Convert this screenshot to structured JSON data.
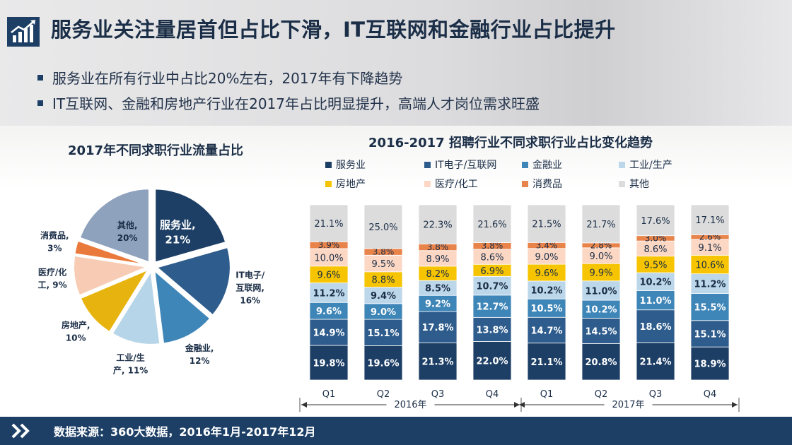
{
  "header": {
    "title": "服务业关注量居首但占比下滑，IT互联网和金融行业占比提升",
    "bullets": [
      "服务业在所有行业中占比20%左右，2017年有下降趋势",
      "IT互联网、金融和房地产行业在2017年占比明显提升，高端人才岗位需求旺盛"
    ]
  },
  "footer": {
    "source": "数据来源：360大数据，2016年1月-2017年12月"
  },
  "chart_data": [
    {
      "type": "pie",
      "title": "2017年不同求职行业流量占比",
      "slices": [
        {
          "name": "服务业",
          "value": 21,
          "label_lines": [
            "服务业,",
            "21%"
          ],
          "color": "#1d3f66"
        },
        {
          "name": "IT电子/互联网",
          "value": 16,
          "label_lines": [
            "IT电子/",
            "互联网,",
            "16%"
          ],
          "color": "#2e5c8c"
        },
        {
          "name": "金融业",
          "value": 12,
          "label_lines": [
            "金融业,",
            "12%"
          ],
          "color": "#3f86b8"
        },
        {
          "name": "工业/生产",
          "value": 11,
          "label_lines": [
            "工业/生",
            "产, 11%"
          ],
          "color": "#b7d5e8"
        },
        {
          "name": "房地产",
          "value": 10,
          "label_lines": [
            "房地产,",
            "10%"
          ],
          "color": "#e7b40f"
        },
        {
          "name": "医疗/化工",
          "value": 9,
          "label_lines": [
            "医疗/化",
            "工, 9%"
          ],
          "color": "#f8ccb4"
        },
        {
          "name": "消费品",
          "value": 3,
          "label_lines": [
            "消费品,",
            "3%"
          ],
          "color": "#ea7a3c"
        },
        {
          "name": "其他",
          "value": 20,
          "label_lines": [
            "其他,",
            "20%"
          ],
          "color": "#8fa2bd"
        }
      ]
    },
    {
      "type": "bar",
      "stacked": true,
      "title": "2016-2017 招聘行业不同求职行业占比变化趋势",
      "categories": [
        "Q1",
        "Q2",
        "Q3",
        "Q4",
        "Q1",
        "Q2",
        "Q3",
        "Q4"
      ],
      "groups": [
        {
          "label": "2016年",
          "span": [
            0,
            3
          ]
        },
        {
          "label": "2017年",
          "span": [
            4,
            7
          ]
        }
      ],
      "legend_position": "top",
      "series": [
        {
          "name": "服务业",
          "color": "#1d3f66",
          "values": [
            19.8,
            19.6,
            21.3,
            22.0,
            21.1,
            20.8,
            21.4,
            18.9
          ]
        },
        {
          "name": "IT电子/互联网",
          "color": "#2e5c8c",
          "values": [
            14.9,
            15.1,
            17.8,
            13.8,
            14.7,
            14.5,
            18.6,
            15.1
          ]
        },
        {
          "name": "金融业",
          "color": "#3f86b8",
          "values": [
            9.6,
            9.0,
            9.2,
            12.7,
            10.5,
            10.2,
            11.0,
            15.5
          ]
        },
        {
          "name": "工业/生产",
          "color": "#bcd6ea",
          "values": [
            11.2,
            9.4,
            8.5,
            10.7,
            10.2,
            11.0,
            10.2,
            11.2
          ]
        },
        {
          "name": "房地产",
          "color": "#f6c400",
          "values": [
            9.6,
            8.8,
            8.2,
            6.9,
            9.6,
            9.9,
            9.5,
            10.6
          ]
        },
        {
          "name": "医疗/化工",
          "color": "#fbd7c4",
          "values": [
            10.0,
            9.5,
            8.9,
            8.6,
            9.0,
            9.0,
            8.6,
            9.1
          ]
        },
        {
          "name": "消费品",
          "color": "#e8834a",
          "values": [
            3.9,
            3.8,
            3.8,
            3.8,
            3.4,
            2.8,
            3.0,
            2.6
          ]
        },
        {
          "name": "其他",
          "color": "#dcdcdc",
          "values": [
            21.1,
            25.0,
            22.3,
            21.6,
            21.5,
            21.7,
            17.6,
            17.1
          ]
        }
      ],
      "labels": [
        [
          "19.8%",
          "14.9%",
          "9.6%",
          "11.2%",
          "9.6%",
          "10.0%",
          "3.9%",
          "21.1%"
        ],
        [
          "19.6%",
          "15.1%",
          "9.0%",
          "9.4%",
          "8.8%",
          "9.5%",
          "3.8%",
          "25.0%"
        ],
        [
          "21.3%",
          "17.8%",
          "9.2%",
          "8.5%",
          "8.2%",
          "8.9%",
          "3.8%",
          "22.3%"
        ],
        [
          "22.0%",
          "13.8%",
          "12.7%",
          "10.7%",
          "6.9%",
          "8.6%",
          "3.8%",
          "21.6%"
        ],
        [
          "21.1%",
          "14.7%",
          "10.5%",
          "10.2%",
          "9.6%",
          "9.0%",
          "3.4%",
          "21.5%"
        ],
        [
          "20.8%",
          "14.5%",
          "10.2%",
          "11.0%",
          "9.9%",
          "9.0%",
          "2.8%",
          "21.7%"
        ],
        [
          "21.4%",
          "18.6%",
          "11.0%",
          "10.2%",
          "9.5%",
          "8.6%",
          "3.0%",
          "17.6%"
        ],
        [
          "18.9%",
          "15.1%",
          "15.5%",
          "11.2%",
          "10.6%",
          "9.1%",
          "2.6%",
          "17.1%"
        ]
      ]
    }
  ]
}
